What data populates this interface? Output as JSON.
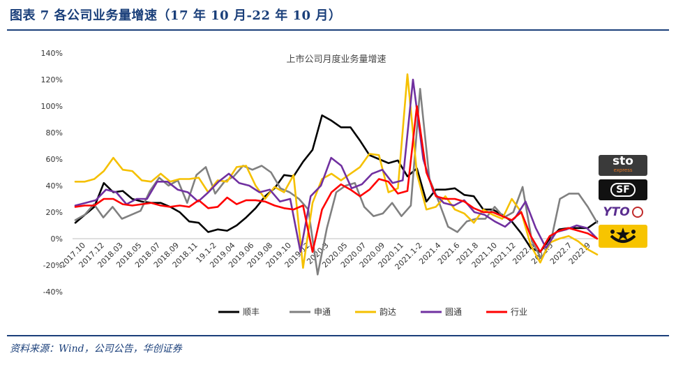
{
  "figure": {
    "header": "图表 7 各公司业务量增速（17 年 10 月-22 年 10 月）",
    "source": "资料来源：Wind，公司公告，华创证券"
  },
  "logos": {
    "sto": "sto",
    "sto_sub": "express",
    "sf": "SF",
    "yto": "YTO"
  },
  "chart_data": {
    "type": "line",
    "title": "上市公司月度业务量增速",
    "xlabel": "",
    "ylabel": "",
    "ylim": [
      -40,
      140
    ],
    "yticks": [
      "140%",
      "120%",
      "100%",
      "80%",
      "60%",
      "40%",
      "20%",
      "0%",
      "-20%",
      "-40%"
    ],
    "grid": false,
    "legend": "bottom",
    "x_labels": [
      "2017.10",
      "2017.12",
      "2018.03",
      "2018.05",
      "2018.07",
      "2018.09",
      "2018.11",
      "19.1-2",
      "2019.04",
      "2019.06",
      "2019.08",
      "2019.10",
      "2019.12",
      "2020.3",
      "2020.05",
      "2020.07",
      "2020.09",
      "2020.11",
      "2021.1-2",
      "2021.4",
      "2021.6",
      "2021.8",
      "2021.10",
      "2021.12",
      "2022.3",
      "2022.5",
      "2022.7",
      "2022.9"
    ],
    "series": [
      {
        "name": "顺丰",
        "color": "#000000",
        "values": [
          12,
          18,
          24,
          42,
          35,
          36,
          30,
          28,
          27,
          27,
          24,
          20,
          13,
          12,
          5,
          7,
          6,
          10,
          16,
          23,
          32,
          38,
          48,
          47,
          58,
          67,
          93,
          89,
          84,
          84,
          74,
          63,
          60,
          57,
          59,
          47,
          53,
          28,
          37,
          37,
          38,
          33,
          32,
          22,
          22,
          18,
          13,
          4,
          -7,
          -10,
          0,
          7,
          8,
          8,
          8,
          13
        ]
      },
      {
        "name": "申通",
        "color": "#808080",
        "values": [
          14,
          18,
          26,
          16,
          24,
          15,
          18,
          21,
          36,
          46,
          40,
          44,
          27,
          48,
          54,
          34,
          43,
          47,
          55,
          52,
          55,
          50,
          38,
          35,
          30,
          22,
          -27,
          8,
          35,
          40,
          42,
          24,
          17,
          19,
          27,
          17,
          25,
          113,
          45,
          28,
          9,
          5,
          13,
          15,
          15,
          24,
          16,
          20,
          39,
          -2,
          -15,
          -3,
          30,
          34,
          34,
          24,
          12
        ]
      },
      {
        "name": "韵达",
        "color": "#F5C000",
        "values": [
          43,
          43,
          45,
          51,
          61,
          52,
          51,
          44,
          43,
          49,
          43,
          45,
          45,
          46,
          35,
          44,
          43,
          54,
          55,
          40,
          30,
          39,
          35,
          48,
          -22,
          27,
          45,
          49,
          44,
          49,
          54,
          64,
          63,
          35,
          38,
          124,
          49,
          22,
          24,
          32,
          22,
          19,
          12,
          22,
          18,
          15,
          30,
          20,
          -5,
          -18,
          -3,
          0,
          2,
          -2,
          -8,
          -12
        ]
      },
      {
        "name": "圆通",
        "color": "#7030A0",
        "values": [
          25,
          27,
          29,
          37,
          35,
          26,
          30,
          30,
          43,
          43,
          37,
          35,
          28,
          35,
          43,
          49,
          42,
          40,
          35,
          37,
          28,
          30,
          -10,
          32,
          40,
          61,
          55,
          38,
          41,
          49,
          52,
          42,
          44,
          120,
          60,
          35,
          27,
          25,
          29,
          20,
          18,
          13,
          9,
          16,
          28,
          8,
          -7,
          5,
          7,
          10,
          8,
          0
        ]
      },
      {
        "name": "行业",
        "color": "#FF0000",
        "values": [
          24,
          25,
          25,
          30,
          30,
          26,
          25,
          26,
          27,
          25,
          24,
          25,
          24,
          29,
          23,
          24,
          31,
          26,
          29,
          29,
          28,
          25,
          23,
          22,
          25,
          -10,
          22,
          35,
          41,
          37,
          32,
          37,
          45,
          43,
          34,
          36,
          100,
          50,
          32,
          30,
          30,
          28,
          23,
          20,
          20,
          17,
          14,
          20,
          2,
          -10,
          2,
          6,
          8,
          6,
          4,
          0
        ]
      }
    ]
  }
}
